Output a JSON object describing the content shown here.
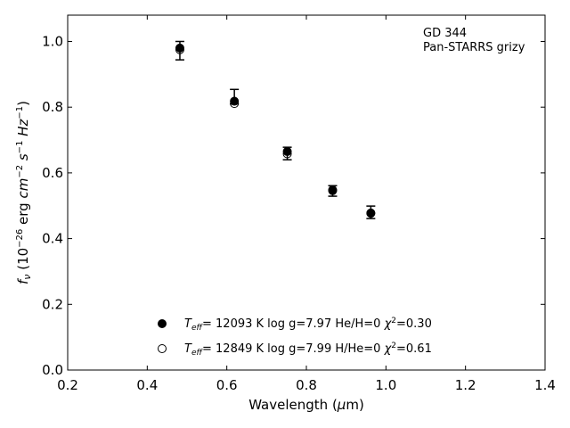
{
  "chart_data": {
    "type": "scatter",
    "title": "",
    "annotations": [
      "GD 344",
      "Pan-STARRS grizy"
    ],
    "xlabel": "Wavelength (μm)",
    "ylabel": "fν (10⁻²⁶ erg cm⁻² s⁻¹ Hz⁻¹)",
    "xlim": [
      0.2,
      1.4
    ],
    "ylim": [
      0.0,
      1.08
    ],
    "xticks": [
      "0.2",
      "0.4",
      "0.6",
      "0.8",
      "1.0",
      "1.2",
      "1.4"
    ],
    "yticks": [
      "0.0",
      "0.2",
      "0.4",
      "0.6",
      "0.8",
      "1.0"
    ],
    "grid": false,
    "legend_position": "bottom-center",
    "observed": {
      "x": [
        0.482,
        0.619,
        0.752,
        0.866,
        0.962
      ],
      "y": [
        0.972,
        0.832,
        0.659,
        0.545,
        0.48
      ],
      "err": [
        0.028,
        0.022,
        0.019,
        0.016,
        0.019
      ]
    },
    "series": [
      {
        "name": "T_eff= 12093 K  log g=7.97  He/H=0  χ²=0.30",
        "marker": "filled-circle",
        "x": [
          0.482,
          0.619,
          0.752,
          0.866,
          0.962
        ],
        "y": [
          0.98,
          0.818,
          0.665,
          0.548,
          0.477
        ]
      },
      {
        "name": "T_eff= 12849 K  log g=7.99  H/He=0  χ²=0.61",
        "marker": "open-circle",
        "x": [
          0.482,
          0.619,
          0.752,
          0.866,
          0.962
        ],
        "y": [
          0.975,
          0.811,
          0.658,
          0.546,
          0.478
        ]
      }
    ]
  }
}
